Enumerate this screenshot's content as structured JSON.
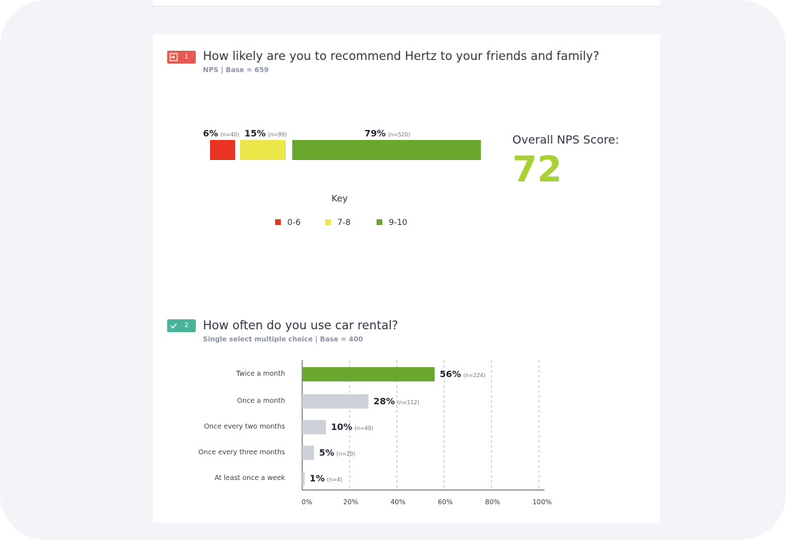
{
  "colors": {
    "red": "#ea3323",
    "yellow": "#ebe64a",
    "green": "#6aa72e",
    "grey_bar": "#cdd1d8",
    "score": "#a8d135",
    "badge_red": "#e85a4f",
    "badge_teal": "#48b49a"
  },
  "q1": {
    "badge_icon": "login-icon",
    "number": "1",
    "title": "How likely are you to recommend Hertz to your friends and family?",
    "subtitle": "NPS | Base = 659",
    "segments": [
      {
        "pct": "6%",
        "n": "(n=40)",
        "value": 6
      },
      {
        "pct": "15%",
        "n": "(n=99)",
        "value": 15
      },
      {
        "pct": "79%",
        "n": "(n=520)",
        "value": 79
      }
    ],
    "score_label": "Overall NPS Score:",
    "score": "72",
    "key_title": "Key",
    "key": [
      "0-6",
      "7-8",
      "9-10"
    ]
  },
  "q2": {
    "badge_icon": "check-icon",
    "number": "2",
    "title": "How often do you use car rental?",
    "subtitle": "Single select multiple choice | Base = 400"
  },
  "chart_data": {
    "type": "bar",
    "orientation": "horizontal",
    "categories": [
      "Twice a month",
      "Once a month",
      "Once every two months",
      "Once every three months",
      "At least once a week"
    ],
    "values": [
      56,
      28,
      10,
      5,
      1
    ],
    "value_labels": [
      "56%",
      "28%",
      "10%",
      "5%",
      "1%"
    ],
    "counts": [
      "(n=224)",
      "(n=112)",
      "(n=40)",
      "(n=20)",
      "(n=4)"
    ],
    "xticks": [
      "0%",
      "20%",
      "40%",
      "60%",
      "80%",
      "100%"
    ],
    "xlim": [
      0,
      100
    ],
    "grid": "vertical dashed",
    "highlight_first": true
  }
}
